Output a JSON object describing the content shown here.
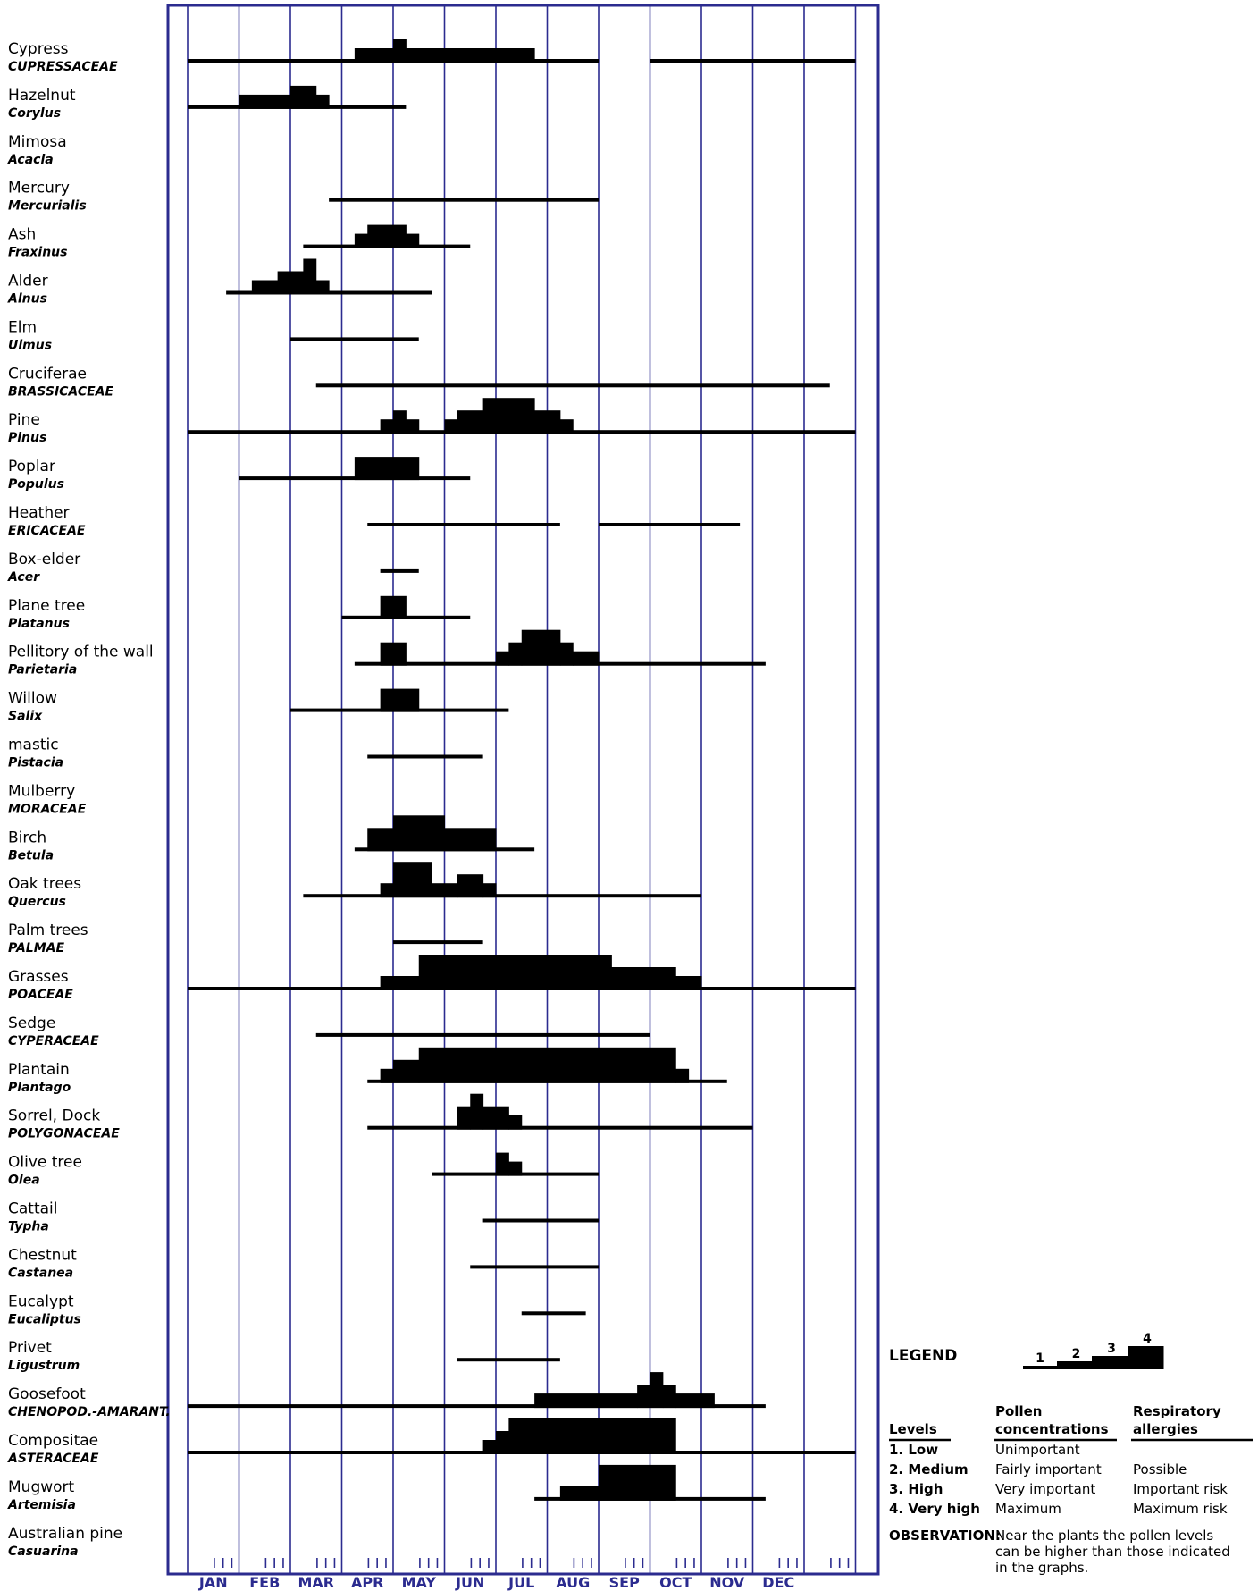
{
  "chart_data": {
    "type": "bar",
    "title": "",
    "x_axis": {
      "unit": "month",
      "range": [
        0,
        13
      ],
      "tick_labels": [
        "JAN",
        "FEB",
        "MAR",
        "APR",
        "MAY",
        "JUN",
        "JUL",
        "AUG",
        "SEP",
        "OCT",
        "NOV",
        "DEC"
      ],
      "minor_ticks_per_month": 4
    },
    "level_scale": [
      1,
      4
    ],
    "grid": "vertical month lines",
    "note": "x values are in months on a 0-13 scale; level 1 = line, levels 2-4 = bar heights",
    "plants": [
      {
        "name": "Cypress",
        "family": "CUPRESSACEAE",
        "lines": [
          [
            0,
            8
          ],
          [
            9,
            13
          ]
        ],
        "blocks": [
          [
            3.25,
            4.0,
            2
          ],
          [
            4.0,
            4.25,
            3
          ],
          [
            4.25,
            6.75,
            2
          ]
        ]
      },
      {
        "name": "Hazelnut",
        "family": "Corylus",
        "lines": [
          [
            0,
            4.25
          ]
        ],
        "blocks": [
          [
            1.0,
            2.0,
            2
          ],
          [
            2.0,
            2.5,
            3
          ],
          [
            2.5,
            2.75,
            2
          ]
        ]
      },
      {
        "name": "Mimosa",
        "family": "Acacia",
        "lines": [],
        "blocks": []
      },
      {
        "name": "Mercury",
        "family": "Mercurialis",
        "lines": [
          [
            2.75,
            8
          ]
        ],
        "blocks": []
      },
      {
        "name": "Ash",
        "family": "Fraxinus",
        "lines": [
          [
            2.25,
            5.5
          ]
        ],
        "blocks": [
          [
            3.25,
            3.5,
            2
          ],
          [
            3.5,
            4.25,
            3
          ],
          [
            4.25,
            4.5,
            2
          ]
        ]
      },
      {
        "name": "Alder",
        "family": "Alnus",
        "lines": [
          [
            0.75,
            4.75
          ]
        ],
        "blocks": [
          [
            1.25,
            1.75,
            2
          ],
          [
            1.75,
            2.25,
            3
          ],
          [
            2.25,
            2.5,
            4
          ],
          [
            2.5,
            2.75,
            2
          ]
        ]
      },
      {
        "name": "Elm",
        "family": "Ulmus",
        "lines": [
          [
            2.0,
            4.5
          ]
        ],
        "blocks": []
      },
      {
        "name": "Cruciferae",
        "family": "BRASSICACEAE",
        "lines": [
          [
            2.5,
            12.5
          ]
        ],
        "blocks": []
      },
      {
        "name": "Pine",
        "family": "Pinus",
        "lines": [
          [
            0,
            13
          ]
        ],
        "blocks": [
          [
            3.75,
            4.0,
            2
          ],
          [
            4.0,
            4.25,
            3
          ],
          [
            4.25,
            4.5,
            2
          ],
          [
            5.0,
            5.25,
            2
          ],
          [
            5.25,
            5.75,
            3
          ],
          [
            5.75,
            6.75,
            4
          ],
          [
            6.75,
            7.25,
            3
          ],
          [
            7.25,
            7.5,
            2
          ]
        ]
      },
      {
        "name": "Poplar",
        "family": "Populus",
        "lines": [
          [
            1.0,
            5.5
          ]
        ],
        "blocks": [
          [
            3.25,
            4.5,
            3
          ]
        ]
      },
      {
        "name": "Heather",
        "family": "ERICACEAE",
        "lines": [
          [
            3.5,
            7.25
          ],
          [
            8.0,
            10.75
          ]
        ],
        "blocks": []
      },
      {
        "name": "Box-elder",
        "family": "Acer",
        "lines": [
          [
            3.75,
            4.5
          ]
        ],
        "blocks": []
      },
      {
        "name": "Plane tree",
        "family": "Platanus",
        "lines": [
          [
            3.0,
            5.5
          ]
        ],
        "blocks": [
          [
            3.75,
            4.25,
            3
          ]
        ]
      },
      {
        "name": "Pellitory of the wall",
        "family": "Parietaria",
        "lines": [
          [
            3.25,
            11.25
          ]
        ],
        "blocks": [
          [
            3.75,
            4.25,
            3
          ],
          [
            6.0,
            6.25,
            2
          ],
          [
            6.25,
            6.5,
            3
          ],
          [
            6.5,
            7.25,
            4
          ],
          [
            7.25,
            7.5,
            3
          ],
          [
            7.5,
            8.0,
            2
          ]
        ]
      },
      {
        "name": "Willow",
        "family": "Salix",
        "lines": [
          [
            2.0,
            6.25
          ]
        ],
        "blocks": [
          [
            3.75,
            4.5,
            3
          ]
        ]
      },
      {
        "name": "mastic",
        "family": "Pistacia",
        "lines": [
          [
            3.5,
            5.75
          ]
        ],
        "blocks": []
      },
      {
        "name": "Mulberry",
        "family": "MORACEAE",
        "lines": [],
        "blocks": []
      },
      {
        "name": "Birch",
        "family": "Betula",
        "lines": [
          [
            3.25,
            6.75
          ]
        ],
        "blocks": [
          [
            3.5,
            4.0,
            3
          ],
          [
            4.0,
            5.0,
            4
          ],
          [
            5.0,
            6.0,
            3
          ]
        ]
      },
      {
        "name": "Oak trees",
        "family": "Quercus",
        "lines": [
          [
            2.25,
            10.0
          ]
        ],
        "blocks": [
          [
            3.75,
            4.0,
            2
          ],
          [
            4.0,
            4.75,
            4
          ],
          [
            4.75,
            5.25,
            2
          ],
          [
            5.25,
            5.75,
            3
          ],
          [
            5.75,
            6.0,
            2
          ]
        ]
      },
      {
        "name": "Palm trees",
        "family": "PALMAE",
        "lines": [
          [
            4.0,
            5.75
          ]
        ],
        "blocks": []
      },
      {
        "name": "Grasses",
        "family": "POACEAE",
        "lines": [
          [
            0,
            13
          ]
        ],
        "blocks": [
          [
            3.75,
            4.5,
            2
          ],
          [
            4.5,
            8.25,
            4
          ],
          [
            8.25,
            9.5,
            3
          ],
          [
            9.5,
            10.0,
            2
          ]
        ]
      },
      {
        "name": "Sedge",
        "family": "CYPERACEAE",
        "lines": [
          [
            2.5,
            9.0
          ]
        ],
        "blocks": []
      },
      {
        "name": "Plantain",
        "family": "Plantago",
        "lines": [
          [
            3.5,
            10.5
          ]
        ],
        "blocks": [
          [
            3.75,
            4.0,
            2
          ],
          [
            4.0,
            4.5,
            3
          ],
          [
            4.5,
            9.5,
            4
          ],
          [
            9.5,
            9.75,
            2
          ]
        ]
      },
      {
        "name": "Sorrel, Dock",
        "family": "POLYGONACEAE",
        "lines": [
          [
            3.5,
            11.0
          ]
        ],
        "blocks": [
          [
            5.25,
            5.5,
            3
          ],
          [
            5.5,
            5.75,
            4
          ],
          [
            5.75,
            6.25,
            3
          ],
          [
            6.25,
            6.5,
            2
          ]
        ]
      },
      {
        "name": "Olive tree",
        "family": "Olea",
        "lines": [
          [
            4.75,
            8.0
          ]
        ],
        "blocks": [
          [
            6.0,
            6.25,
            3
          ],
          [
            6.25,
            6.5,
            2
          ]
        ]
      },
      {
        "name": "Cattail",
        "family": "Typha",
        "lines": [
          [
            5.75,
            8.0
          ]
        ],
        "blocks": []
      },
      {
        "name": "Chestnut",
        "family": "Castanea",
        "lines": [
          [
            5.5,
            8.0
          ]
        ],
        "blocks": []
      },
      {
        "name": "Eucalypt",
        "family": "Eucaliptus",
        "lines": [
          [
            6.5,
            7.75
          ]
        ],
        "blocks": []
      },
      {
        "name": "Privet",
        "family": "Ligustrum",
        "lines": [
          [
            5.25,
            7.25
          ]
        ],
        "blocks": []
      },
      {
        "name": "Goosefoot",
        "family": "CHENOPOD.-AMARANT.",
        "lines": [
          [
            0,
            11.25
          ]
        ],
        "blocks": [
          [
            6.75,
            8.75,
            2
          ],
          [
            8.75,
            9.0,
            3
          ],
          [
            9.0,
            9.25,
            4
          ],
          [
            9.25,
            9.5,
            3
          ],
          [
            9.5,
            10.25,
            2
          ]
        ]
      },
      {
        "name": "Compositae",
        "family": "ASTERACEAE",
        "lines": [
          [
            0,
            13
          ]
        ],
        "blocks": [
          [
            5.75,
            6.0,
            2
          ],
          [
            6.0,
            6.25,
            3
          ],
          [
            6.25,
            9.5,
            4
          ]
        ]
      },
      {
        "name": "Mugwort",
        "family": "Artemisia",
        "lines": [
          [
            6.75,
            11.25
          ]
        ],
        "blocks": [
          [
            7.25,
            8.0,
            2
          ],
          [
            8.0,
            9.5,
            4
          ]
        ]
      },
      {
        "name": "Australian pine",
        "family": "Casuarina",
        "lines": [],
        "blocks": []
      }
    ]
  },
  "legend": {
    "title": "LEGEND",
    "step_labels": [
      "1",
      "2",
      "3",
      "4"
    ],
    "headers": {
      "levels": "Levels",
      "pollen": [
        "Pollen",
        "concentrations"
      ],
      "allergy": [
        "Respiratory",
        "allergies"
      ]
    },
    "rows": [
      {
        "level": "1. Low",
        "pollen": "Unimportant",
        "allergy": ""
      },
      {
        "level": "2. Medium",
        "pollen": "Fairly important",
        "allergy": "Possible"
      },
      {
        "level": "3. High",
        "pollen": "Very important",
        "allergy": "Important risk"
      },
      {
        "level": "4. Very high",
        "pollen": "Maximum",
        "allergy": "Maximum risk"
      }
    ],
    "observation_label": "OBSERVATION:",
    "observation_lines": [
      "Near the plants the pollen levels",
      "can be higher than those indicated",
      "in the graphs."
    ]
  },
  "colors": {
    "frame": "#2b2b8f",
    "bars": "#000000",
    "month_text": "#2b2b8f"
  }
}
